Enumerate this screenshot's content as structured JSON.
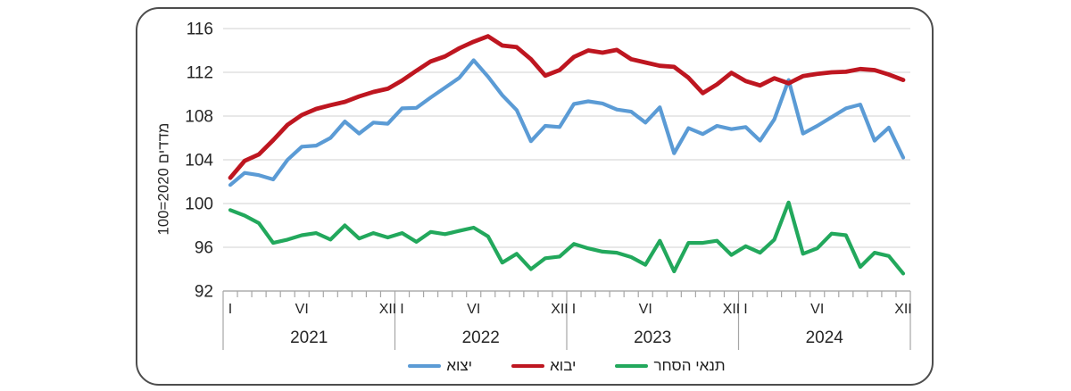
{
  "chart_data": {
    "type": "line",
    "title": "",
    "ylabel": "מדדים 2020=100",
    "ylim": [
      92,
      116
    ],
    "yticks": [
      116,
      112,
      108,
      104,
      100,
      96,
      92
    ],
    "x_unit": "months",
    "x_range": "2021-01 to 2024-12",
    "years": [
      "2021",
      "2022",
      "2023",
      "2024"
    ],
    "months_per_year": 12,
    "month_tick_labels": {
      "0": "I",
      "5": "VI",
      "11": "XII",
      "12": "I",
      "17": "VI",
      "23": "XII",
      "24": "I",
      "29": "VI",
      "35": "XII",
      "36": "I",
      "41": "VI",
      "47": "XII"
    },
    "grid": "horizontal",
    "legend_position": "bottom",
    "colors": {
      "grid": "#D9D9D9",
      "axis": "#ADADAD",
      "tick": "#A6A6A6",
      "text": "#262626"
    },
    "series": [
      {
        "name": "יצוא",
        "color": "#5B9BD5",
        "values": [
          101.7,
          102.8,
          102.6,
          102.2,
          104.0,
          105.2,
          105.3,
          106.0,
          107.5,
          106.4,
          107.4,
          107.3,
          108.7,
          108.75,
          109.7,
          110.6,
          111.5,
          113.1,
          111.6,
          109.9,
          108.55,
          105.7,
          107.1,
          107.0,
          109.1,
          109.35,
          109.15,
          108.6,
          108.4,
          107.4,
          108.8,
          104.6,
          106.9,
          106.35,
          107.1,
          106.8,
          107.0,
          105.75,
          107.7,
          111.3,
          106.4,
          107.1,
          107.9,
          108.7,
          109.05,
          105.75,
          106.95,
          104.2
        ]
      },
      {
        "name": "יבוא",
        "color": "#BE1620",
        "values": [
          102.35,
          103.9,
          104.5,
          105.8,
          107.2,
          108.1,
          108.65,
          109.0,
          109.3,
          109.8,
          110.2,
          110.5,
          111.25,
          112.15,
          113.0,
          113.45,
          114.2,
          114.8,
          115.3,
          114.45,
          114.3,
          113.2,
          111.7,
          112.2,
          113.4,
          114.0,
          113.8,
          114.05,
          113.2,
          112.9,
          112.6,
          112.5,
          111.5,
          110.1,
          110.9,
          111.95,
          111.2,
          110.8,
          111.45,
          111.0,
          111.65,
          111.85,
          112.0,
          112.05,
          112.3,
          112.2,
          111.8,
          111.3
        ]
      },
      {
        "name": "תנאי הסחר",
        "color": "#22A85C",
        "values": [
          99.4,
          98.9,
          98.2,
          96.4,
          96.7,
          97.1,
          97.3,
          96.7,
          98.0,
          96.8,
          97.3,
          96.9,
          97.3,
          96.5,
          97.4,
          97.2,
          97.5,
          97.8,
          97.0,
          94.6,
          95.4,
          94.0,
          95.0,
          95.15,
          96.3,
          95.9,
          95.6,
          95.5,
          95.1,
          94.4,
          96.6,
          93.8,
          96.4,
          96.4,
          96.6,
          95.3,
          96.1,
          95.5,
          96.7,
          100.1,
          95.4,
          95.9,
          97.25,
          97.1,
          94.2,
          95.5,
          95.2,
          93.6
        ]
      }
    ]
  }
}
